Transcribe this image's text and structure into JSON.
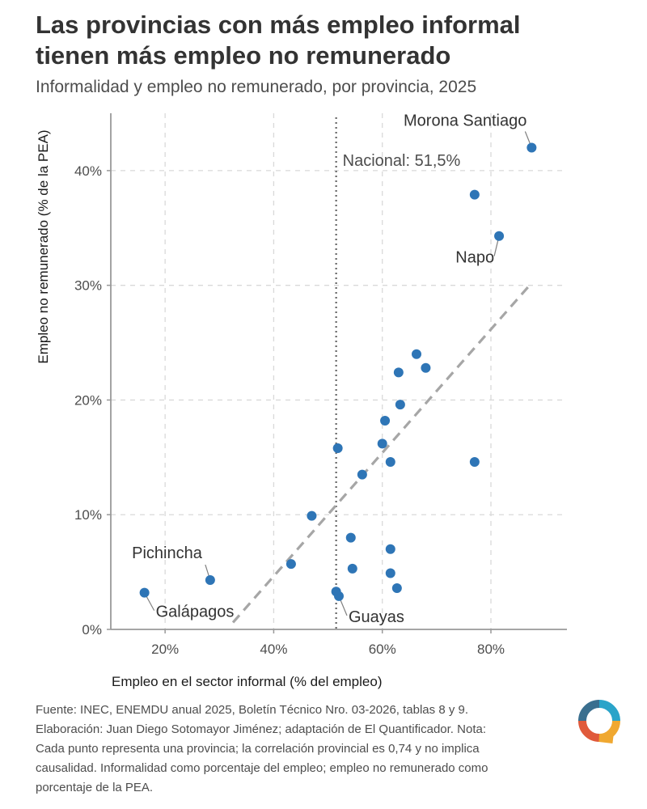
{
  "header": {
    "title_line1": "Las provincias con más empleo informal",
    "title_line2": "tienen más empleo no remunerado",
    "subtitle": "Informalidad y empleo no remunerado, por provincia, 2025"
  },
  "caption": {
    "line1": "Fuente: INEC, ENEMDU anual 2025, Boletín Técnico Nro. 03-2026, tablas 8 y 9.",
    "line2": "Elaboración: Juan Diego Sotomayor Jiménez; adaptación de El Quantificador. Nota:",
    "line3": "Cada punto representa una provincia; la correlación provincial es 0,74 y no implica",
    "line4": "causalidad. Informalidad como porcentaje del empleo; empleo no remunerado como",
    "line5": "porcentaje de la PEA."
  },
  "logo": {
    "colors": [
      "#3a6f8f",
      "#2aa4c9",
      "#e05a3b",
      "#f0a830"
    ]
  },
  "chart_data": {
    "type": "scatter",
    "xlabel": "Empleo en el sector informal (% del empleo)",
    "ylabel": "Empleo no remunerado (% de la PEA)",
    "xlim": [
      10,
      94
    ],
    "ylim": [
      0,
      45
    ],
    "x_ticks": [
      20,
      40,
      60,
      80
    ],
    "x_tick_labels": [
      "20%",
      "40%",
      "60%",
      "80%"
    ],
    "y_ticks": [
      0,
      10,
      20,
      30,
      40
    ],
    "y_tick_labels": [
      "0%",
      "10%",
      "20%",
      "30%",
      "40%"
    ],
    "grid": true,
    "point_color": "#2e75b6",
    "reference_line": {
      "x": 51.5,
      "label": "Nacional: 51,5%"
    },
    "trend_line": {
      "from": [
        32.5,
        0.6
      ],
      "to": [
        87.5,
        30.2
      ]
    },
    "points": [
      {
        "x": 87.5,
        "y": 42.0,
        "label": "Morona Santiago"
      },
      {
        "x": 77.0,
        "y": 37.9
      },
      {
        "x": 81.5,
        "y": 34.3,
        "label": "Napo"
      },
      {
        "x": 66.3,
        "y": 24.0
      },
      {
        "x": 68.0,
        "y": 22.8
      },
      {
        "x": 63.0,
        "y": 22.4
      },
      {
        "x": 63.3,
        "y": 19.6
      },
      {
        "x": 60.5,
        "y": 18.2
      },
      {
        "x": 51.8,
        "y": 15.8
      },
      {
        "x": 60.0,
        "y": 16.2
      },
      {
        "x": 61.5,
        "y": 14.6
      },
      {
        "x": 77.0,
        "y": 14.6
      },
      {
        "x": 56.3,
        "y": 13.5
      },
      {
        "x": 47.0,
        "y": 9.9
      },
      {
        "x": 54.2,
        "y": 8.0
      },
      {
        "x": 61.5,
        "y": 7.0
      },
      {
        "x": 43.2,
        "y": 5.7
      },
      {
        "x": 54.5,
        "y": 5.3
      },
      {
        "x": 61.5,
        "y": 4.9
      },
      {
        "x": 62.7,
        "y": 3.6
      },
      {
        "x": 28.3,
        "y": 4.3,
        "label": "Pichincha"
      },
      {
        "x": 16.2,
        "y": 3.2,
        "label": "Galápagos"
      },
      {
        "x": 51.5,
        "y": 3.3
      },
      {
        "x": 52.0,
        "y": 2.9,
        "label": "Guayas"
      }
    ]
  }
}
